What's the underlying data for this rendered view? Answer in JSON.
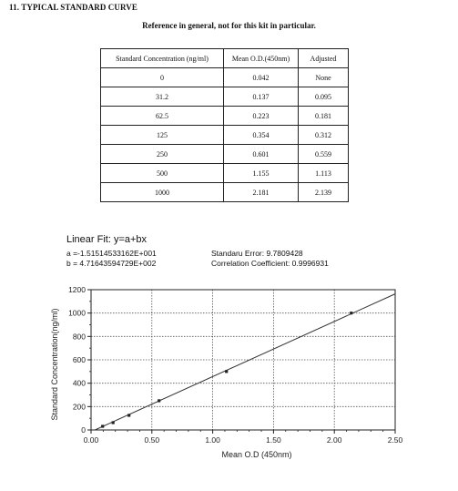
{
  "heading": {
    "section_title": "11. TYPICAL STANDARD CURVE",
    "subtitle": "Reference in general, not for this kit in particular."
  },
  "table": {
    "headers": [
      "Standard Concentration (ng/ml)",
      "Mean O.D.(450nm)",
      "Adjusted"
    ],
    "rows": [
      [
        "0",
        "0.042",
        "None"
      ],
      [
        "31.2",
        "0.137",
        "0.095"
      ],
      [
        "62.5",
        "0.223",
        "0.181"
      ],
      [
        "125",
        "0.354",
        "0.312"
      ],
      [
        "250",
        "0.601",
        "0.559"
      ],
      [
        "500",
        "1.155",
        "1.113"
      ],
      [
        "1000",
        "2.181",
        "2.139"
      ]
    ]
  },
  "fit": {
    "title": "Linear Fit: y=a+bx",
    "a": "a =-1.51514533162E+001",
    "b": "b = 4.71643594729E+002",
    "std_error": "Standaru Error: 9.7809428",
    "corr_coeff": "Correlation Coefficient: 0.9996931"
  },
  "chart_data": {
    "type": "scatter",
    "xlabel": "Mean O.D (450nm)",
    "ylabel": "Standard Concentration(ng/ml)",
    "xlim": [
      0,
      2.5
    ],
    "ylim": [
      0,
      1200
    ],
    "x_ticks": [
      0,
      0.5,
      1.0,
      1.5,
      2.0,
      2.5
    ],
    "x_tick_labels": [
      "0.00",
      "0.50",
      "1.00",
      "1.50",
      "2.00",
      "2.50"
    ],
    "y_ticks": [
      0,
      200,
      400,
      600,
      800,
      1000,
      1200
    ],
    "y_tick_labels": [
      "0",
      "200",
      "400",
      "600",
      "800",
      "1000",
      "1200"
    ],
    "grid": true,
    "points": {
      "x": [
        0.095,
        0.181,
        0.312,
        0.559,
        1.113,
        2.139
      ],
      "y": [
        31.2,
        62.5,
        125,
        250,
        500,
        1000
      ]
    },
    "fit_line": {
      "a": -15.1514533162,
      "b": 471.643594729
    }
  }
}
